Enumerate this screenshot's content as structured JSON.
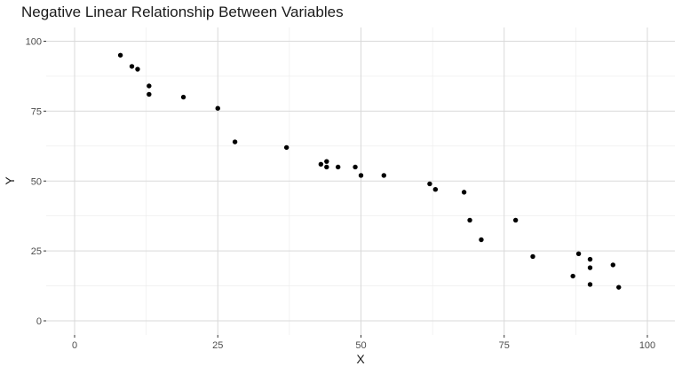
{
  "chart_data": {
    "type": "scatter",
    "title": "Negative Linear Relationship Between Variables",
    "xlabel": "X",
    "ylabel": "Y",
    "xlim": [
      -5,
      105
    ],
    "ylim": [
      -5,
      105
    ],
    "x_ticks": [
      0,
      25,
      50,
      75,
      100
    ],
    "y_ticks": [
      0,
      25,
      50,
      75,
      100
    ],
    "grid": true,
    "legend": "none",
    "points": [
      {
        "x": 8,
        "y": 95
      },
      {
        "x": 10,
        "y": 91
      },
      {
        "x": 11,
        "y": 90
      },
      {
        "x": 13,
        "y": 84
      },
      {
        "x": 13,
        "y": 81
      },
      {
        "x": 19,
        "y": 80
      },
      {
        "x": 25,
        "y": 76
      },
      {
        "x": 28,
        "y": 64
      },
      {
        "x": 37,
        "y": 62
      },
      {
        "x": 43,
        "y": 56
      },
      {
        "x": 44,
        "y": 57
      },
      {
        "x": 44,
        "y": 55
      },
      {
        "x": 46,
        "y": 55
      },
      {
        "x": 49,
        "y": 55
      },
      {
        "x": 50,
        "y": 52
      },
      {
        "x": 54,
        "y": 52
      },
      {
        "x": 62,
        "y": 49
      },
      {
        "x": 63,
        "y": 47
      },
      {
        "x": 68,
        "y": 46
      },
      {
        "x": 69,
        "y": 36
      },
      {
        "x": 71,
        "y": 29
      },
      {
        "x": 77,
        "y": 36
      },
      {
        "x": 80,
        "y": 23
      },
      {
        "x": 87,
        "y": 16
      },
      {
        "x": 88,
        "y": 24
      },
      {
        "x": 90,
        "y": 22
      },
      {
        "x": 90,
        "y": 19
      },
      {
        "x": 90,
        "y": 13
      },
      {
        "x": 94,
        "y": 20
      },
      {
        "x": 95,
        "y": 12
      }
    ],
    "colors": {
      "point": "#000000",
      "grid_major": "#d9d9d9",
      "grid_minor": "#ebebeb",
      "tick_text": "#4d4d4d"
    }
  }
}
